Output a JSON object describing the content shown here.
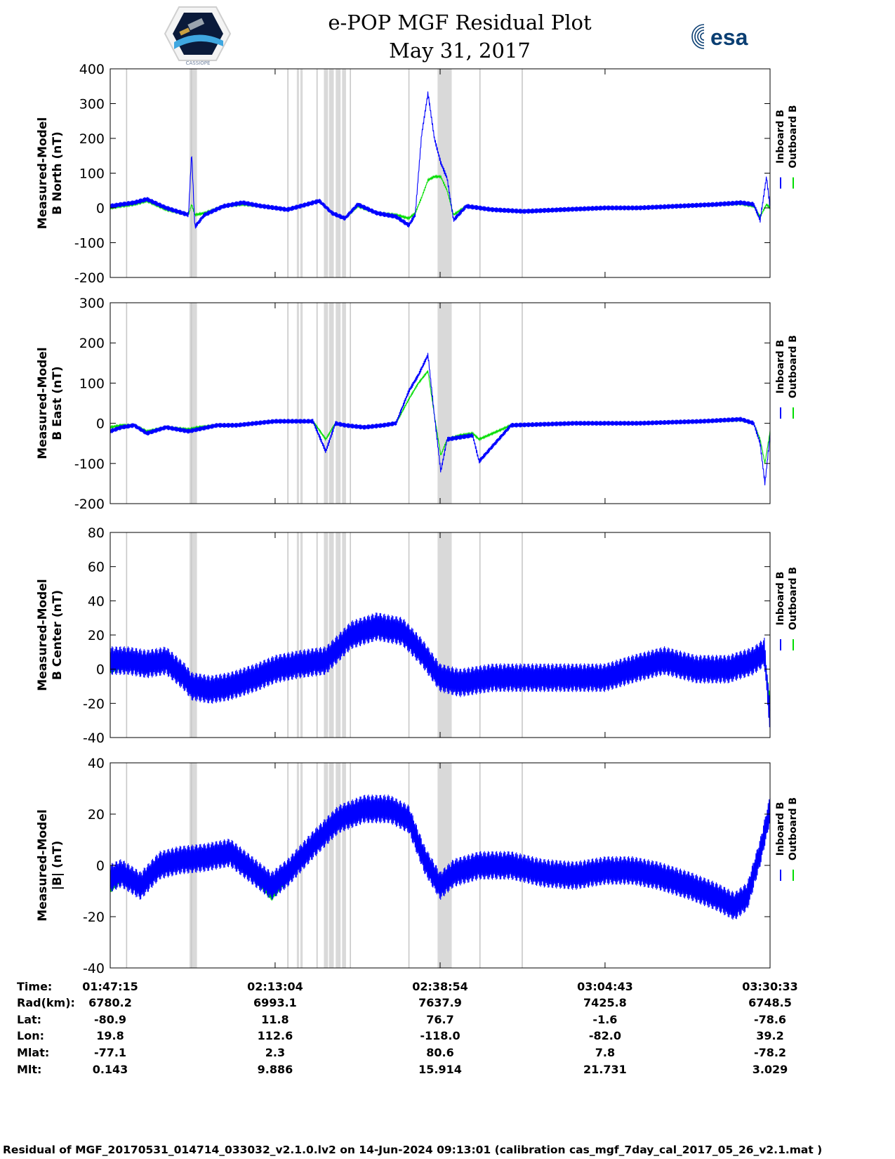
{
  "header": {
    "title_line1": "e-POP MGF Residual Plot",
    "title_line2": "May 31, 2017",
    "left_logo": "cassiope-mission-badge",
    "right_logo_text": "esa"
  },
  "legend": {
    "inboard": "Inboard B",
    "outboard": "Outboard B",
    "inboard_color": "#0000ff",
    "outboard_color": "#00dd00"
  },
  "colors": {
    "gap_shading": "#d9d9d9",
    "inboard": "#0000ff",
    "outboard": "#00dd00"
  },
  "data_gaps_time": [
    "01:49:49",
    "01:59:58",
    "02:15:04",
    "02:19:38",
    "02:24:51",
    "02:34:01",
    "02:45:08",
    "02:51:45"
  ],
  "data_gaps_band_time": [
    [
      "01:59:40",
      "02:00:50"
    ],
    [
      "02:16:28",
      "02:16:48"
    ],
    [
      "02:17:01",
      "02:17:23"
    ],
    [
      "02:20:42",
      "02:21:21"
    ],
    [
      "02:21:30",
      "02:22:15"
    ],
    [
      "02:22:33",
      "02:23:19"
    ],
    [
      "02:23:33",
      "02:24:10"
    ],
    [
      "02:38:30",
      "02:40:43"
    ]
  ],
  "chart_data": [
    {
      "type": "line",
      "ylabel_line1": "Measured-Model",
      "ylabel_line2": "B North (nT)",
      "ylim": [
        -200,
        400
      ],
      "yticks": [
        -200,
        -100,
        0,
        100,
        200,
        300,
        400
      ],
      "x": [
        "01:47:15",
        "01:49:00",
        "01:51:00",
        "01:53:00",
        "01:56:00",
        "01:59:30",
        "02:00:00",
        "02:00:30",
        "02:02:00",
        "02:05:00",
        "02:08:00",
        "02:11:00",
        "02:13:04",
        "02:15:00",
        "02:18:00",
        "02:20:00",
        "02:22:00",
        "02:24:00",
        "02:26:00",
        "02:29:00",
        "02:32:00",
        "02:34:00",
        "02:35:00",
        "02:36:00",
        "02:37:00",
        "02:38:00",
        "02:39:00",
        "02:40:00",
        "02:41:00",
        "02:43:00",
        "02:47:00",
        "02:52:00",
        "02:58:00",
        "03:04:43",
        "03:10:00",
        "03:16:00",
        "03:22:00",
        "03:26:00",
        "03:28:00",
        "03:29:00",
        "03:30:00",
        "03:30:33"
      ],
      "series": [
        {
          "name": "Inboard B",
          "values": [
            5,
            10,
            15,
            25,
            0,
            -20,
            160,
            -55,
            -20,
            5,
            15,
            5,
            0,
            -5,
            10,
            20,
            -15,
            -30,
            10,
            -15,
            -25,
            -50,
            -20,
            210,
            330,
            200,
            130,
            85,
            -35,
            5,
            -5,
            -10,
            -5,
            0,
            0,
            5,
            10,
            15,
            10,
            -35,
            90,
            0
          ]
        },
        {
          "name": "Outboard B",
          "values": [
            0,
            5,
            10,
            20,
            -5,
            -20,
            10,
            -20,
            -15,
            5,
            10,
            5,
            0,
            -5,
            10,
            20,
            -15,
            -30,
            5,
            -15,
            -20,
            -30,
            -15,
            30,
            80,
            90,
            90,
            50,
            -20,
            5,
            -5,
            -10,
            -5,
            0,
            0,
            5,
            10,
            12,
            5,
            -25,
            10,
            0
          ]
        }
      ]
    },
    {
      "type": "line",
      "ylabel_line1": "Measured-Model",
      "ylabel_line2": "B East (nT)",
      "ylim": [
        -200,
        300
      ],
      "yticks": [
        -200,
        -100,
        0,
        100,
        200,
        300
      ],
      "x": [
        "01:47:15",
        "01:49:00",
        "01:51:00",
        "01:53:00",
        "01:56:00",
        "01:59:30",
        "02:01:00",
        "02:04:00",
        "02:07:00",
        "02:10:00",
        "02:13:04",
        "02:16:00",
        "02:19:00",
        "02:21:00",
        "02:22:30",
        "02:24:00",
        "02:27:00",
        "02:30:00",
        "02:32:00",
        "02:34:00",
        "02:35:30",
        "02:37:00",
        "02:38:00",
        "02:39:00",
        "02:40:00",
        "02:42:00",
        "02:44:00",
        "02:45:00",
        "02:50:00",
        "03:00:00",
        "03:10:00",
        "03:20:00",
        "03:26:00",
        "03:28:00",
        "03:29:00",
        "03:29:45",
        "03:30:33"
      ],
      "series": [
        {
          "name": "Inboard B",
          "values": [
            -20,
            -10,
            -5,
            -25,
            -10,
            -20,
            -15,
            -5,
            -5,
            0,
            5,
            5,
            5,
            -70,
            0,
            -5,
            -10,
            -5,
            0,
            80,
            120,
            170,
            20,
            -120,
            -40,
            -35,
            -30,
            -95,
            -5,
            0,
            0,
            5,
            10,
            0,
            -50,
            -150,
            -30
          ]
        },
        {
          "name": "Outboard B",
          "values": [
            -10,
            -5,
            -5,
            -20,
            -10,
            -15,
            -10,
            -5,
            -5,
            0,
            5,
            5,
            5,
            -40,
            0,
            -5,
            -10,
            -5,
            0,
            60,
            100,
            130,
            20,
            -80,
            -40,
            -30,
            -25,
            -40,
            -5,
            0,
            0,
            5,
            8,
            0,
            -40,
            -100,
            -20
          ]
        }
      ]
    },
    {
      "type": "line",
      "ylabel_line1": "Measured-Model",
      "ylabel_line2": "B Center (nT)",
      "ylim": [
        -40,
        80
      ],
      "yticks": [
        -40,
        -20,
        0,
        20,
        40,
        60,
        80
      ],
      "x": [
        "01:47:15",
        "01:50:00",
        "01:53:00",
        "01:56:00",
        "01:59:00",
        "02:00:00",
        "02:03:00",
        "02:06:00",
        "02:10:00",
        "02:13:04",
        "02:17:00",
        "02:21:00",
        "02:25:00",
        "02:29:00",
        "02:33:00",
        "02:36:00",
        "02:38:54",
        "02:42:00",
        "02:47:00",
        "02:53:00",
        "03:00:00",
        "03:04:43",
        "03:09:00",
        "03:14:00",
        "03:19:00",
        "03:24:00",
        "03:28:00",
        "03:29:40",
        "03:30:33"
      ],
      "series": [
        {
          "name": "Inboard B",
          "values": [
            5,
            5,
            3,
            5,
            -5,
            -10,
            -12,
            -10,
            -5,
            0,
            3,
            5,
            20,
            25,
            22,
            10,
            -5,
            -8,
            -5,
            -5,
            -5,
            -5,
            0,
            5,
            0,
            0,
            5,
            10,
            -30
          ]
        },
        {
          "name": "Outboard B",
          "values": [
            0,
            3,
            3,
            5,
            -5,
            -8,
            -10,
            -8,
            -4,
            0,
            3,
            5,
            18,
            22,
            20,
            8,
            -4,
            -6,
            -4,
            -4,
            -4,
            -3,
            0,
            4,
            0,
            0,
            4,
            8,
            -20
          ]
        }
      ]
    },
    {
      "type": "line",
      "ylabel_line1": "Measured-Model",
      "ylabel_line2": "|B| (nT)",
      "ylim": [
        -40,
        40
      ],
      "yticks": [
        -40,
        -20,
        0,
        20,
        40
      ],
      "x": [
        "01:47:15",
        "01:49:00",
        "01:52:00",
        "01:55:00",
        "01:58:00",
        "02:02:00",
        "02:06:00",
        "02:10:00",
        "02:12:30",
        "02:15:00",
        "02:19:00",
        "02:23:00",
        "02:27:00",
        "02:31:00",
        "02:34:00",
        "02:36:30",
        "02:38:54",
        "02:41:00",
        "02:45:00",
        "02:50:00",
        "02:55:00",
        "03:00:00",
        "03:04:43",
        "03:09:00",
        "03:13:00",
        "03:18:00",
        "03:22:00",
        "03:25:00",
        "03:27:00",
        "03:29:00",
        "03:30:33"
      ],
      "series": [
        {
          "name": "Inboard B",
          "values": [
            -5,
            -3,
            -8,
            0,
            2,
            3,
            5,
            -3,
            -8,
            -3,
            8,
            18,
            22,
            22,
            18,
            2,
            -8,
            -3,
            0,
            0,
            -3,
            -4,
            -2,
            -2,
            -4,
            -8,
            -12,
            -16,
            -12,
            5,
            22
          ]
        },
        {
          "name": "Outboard B",
          "values": [
            -9,
            -5,
            -8,
            0,
            2,
            3,
            5,
            -5,
            -12,
            -5,
            8,
            18,
            22,
            22,
            18,
            2,
            -8,
            -3,
            0,
            0,
            -3,
            -4,
            -2,
            -2,
            -4,
            -8,
            -12,
            -16,
            -12,
            5,
            22
          ]
        }
      ]
    }
  ],
  "orbit_table": {
    "row_labels": [
      "Time:",
      "Rad(km):",
      "Lat:",
      "Lon:",
      "Mlat:",
      "Mlt:"
    ],
    "columns": [
      [
        "01:47:15",
        "6780.2",
        "-80.9",
        "19.8",
        "-77.1",
        "0.143"
      ],
      [
        "02:13:04",
        "6993.1",
        "11.8",
        "112.6",
        "2.3",
        "9.886"
      ],
      [
        "02:38:54",
        "7637.9",
        "76.7",
        "-118.0",
        "80.6",
        "15.914"
      ],
      [
        "03:04:43",
        "7425.8",
        "-1.6",
        "-82.0",
        "7.8",
        "21.731"
      ],
      [
        "03:30:33",
        "6748.5",
        "-78.6",
        "39.2",
        "-78.2",
        "3.029"
      ]
    ]
  },
  "footer": "Residual of MGF_20170531_014714_033032_v2.1.0.lv2 on 14-Jun-2024 09:13:01 (calibration cas_mgf_7day_cal_2017_05_26_v2.1.mat )"
}
